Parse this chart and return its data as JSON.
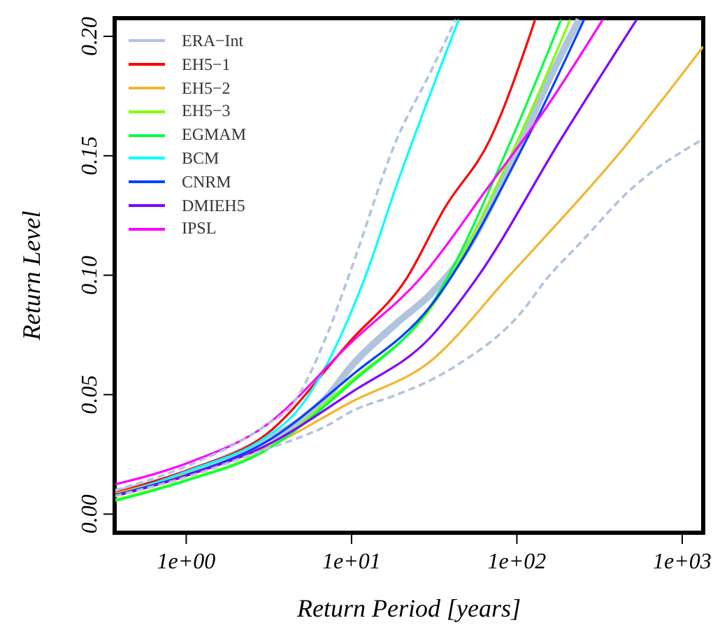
{
  "chart_data": {
    "type": "line",
    "xlabel": "Return Period [years]",
    "ylabel": "Return Level",
    "log": "x",
    "xlim": [
      0.369,
      1340
    ],
    "xticks": [
      {
        "value": 1,
        "label": "1e+00"
      },
      {
        "value": 10,
        "label": "1e+01"
      },
      {
        "value": 100,
        "label": "1e+02"
      },
      {
        "value": 1000,
        "label": "1e+03"
      }
    ],
    "ylim": [
      -0.0078,
      0.2076
    ],
    "yticks": [
      {
        "value": 0,
        "label": "0.00"
      },
      {
        "value": 0.05,
        "label": "0.05"
      },
      {
        "value": 0.1,
        "label": "0.10"
      },
      {
        "value": 0.15,
        "label": "0.15"
      },
      {
        "value": 0.2,
        "label": "0.20"
      }
    ],
    "grid": false,
    "legend": "top left",
    "marker": "none",
    "line_style": "solid",
    "series": [
      {
        "name": "ERA−Int",
        "color": "#b0c4de",
        "x": [
          0.37,
          1,
          3,
          4.4,
          7.1,
          10,
          18.8,
          30,
          42.6,
          108,
          152,
          238
        ],
        "values": [
          0.0088,
          0.017,
          0.031,
          0.037,
          0.049,
          0.062,
          0.08,
          0.092,
          0.104,
          0.157,
          0.18,
          0.207
        ]
      },
      {
        "name": "EH5−1",
        "color": "#ff0000",
        "x": [
          0.37,
          1,
          3,
          10,
          21.5,
          36.5,
          69,
          129
        ],
        "values": [
          0.0088,
          0.0182,
          0.033,
          0.073,
          0.0986,
          0.128,
          0.157,
          0.207
        ]
      },
      {
        "name": "EH5−2",
        "color": "#f2b530",
        "x": [
          0.37,
          1,
          3,
          10,
          30,
          87,
          490,
          1340
        ],
        "values": [
          0.0085,
          0.0167,
          0.0275,
          0.047,
          0.064,
          0.0986,
          0.157,
          0.1957
        ]
      },
      {
        "name": "EH5−3",
        "color": "#80ff00",
        "x": [
          0.37,
          1,
          3,
          10,
          30,
          102,
          210
        ],
        "values": [
          0.006,
          0.0143,
          0.027,
          0.056,
          0.086,
          0.157,
          0.207
        ]
      },
      {
        "name": "EGMAM",
        "color": "#00ff40",
        "x": [
          0.37,
          1,
          3,
          10,
          30,
          93,
          185
        ],
        "values": [
          0.0055,
          0.014,
          0.0265,
          0.055,
          0.087,
          0.157,
          0.207
        ]
      },
      {
        "name": "BCM",
        "color": "#00ffff",
        "x": [
          0.37,
          1,
          3,
          4.5,
          12,
          18.8,
          44.5
        ],
        "values": [
          0.0075,
          0.0178,
          0.032,
          0.0418,
          0.0986,
          0.138,
          0.207
        ]
      },
      {
        "name": "CNRM",
        "color": "#0040ff",
        "x": [
          0.37,
          1,
          3,
          10,
          30,
          115,
          255
        ],
        "values": [
          0.008,
          0.0163,
          0.03,
          0.058,
          0.087,
          0.157,
          0.207
        ]
      },
      {
        "name": "DMIEH5",
        "color": "#8000ff",
        "x": [
          0.37,
          1,
          3,
          10,
          30,
          57,
          185,
          530
        ],
        "values": [
          0.0075,
          0.016,
          0.0285,
          0.051,
          0.074,
          0.0986,
          0.157,
          0.207
        ]
      },
      {
        "name": "IPSL",
        "color": "#ff00ff",
        "x": [
          0.37,
          1,
          3,
          10,
          26,
          69,
          150,
          331
        ],
        "values": [
          0.0124,
          0.0212,
          0.0369,
          0.072,
          0.0986,
          0.138,
          0.17,
          0.207
        ]
      },
      {
        "color": "#b0c4de",
        "line_style": "dashed",
        "x": [
          0.37,
          1,
          3,
          4.4,
          7.1,
          10,
          18.8,
          30,
          42.6
        ],
        "values": [
          0.01,
          0.02,
          0.037,
          0.046,
          0.075,
          0.103,
          0.157,
          0.185,
          0.207
        ]
      },
      {
        "color": "#b0c4de",
        "line_style": "dashed",
        "x": [
          0.37,
          1,
          3,
          4.4,
          7.1,
          10,
          18.8,
          30,
          42.6,
          108,
          152,
          238,
          490,
          1340
        ],
        "values": [
          0.0075,
          0.0155,
          0.027,
          0.031,
          0.037,
          0.043,
          0.05,
          0.056,
          0.062,
          0.085,
          0.0986,
          0.113,
          0.136,
          0.157
        ]
      }
    ]
  }
}
